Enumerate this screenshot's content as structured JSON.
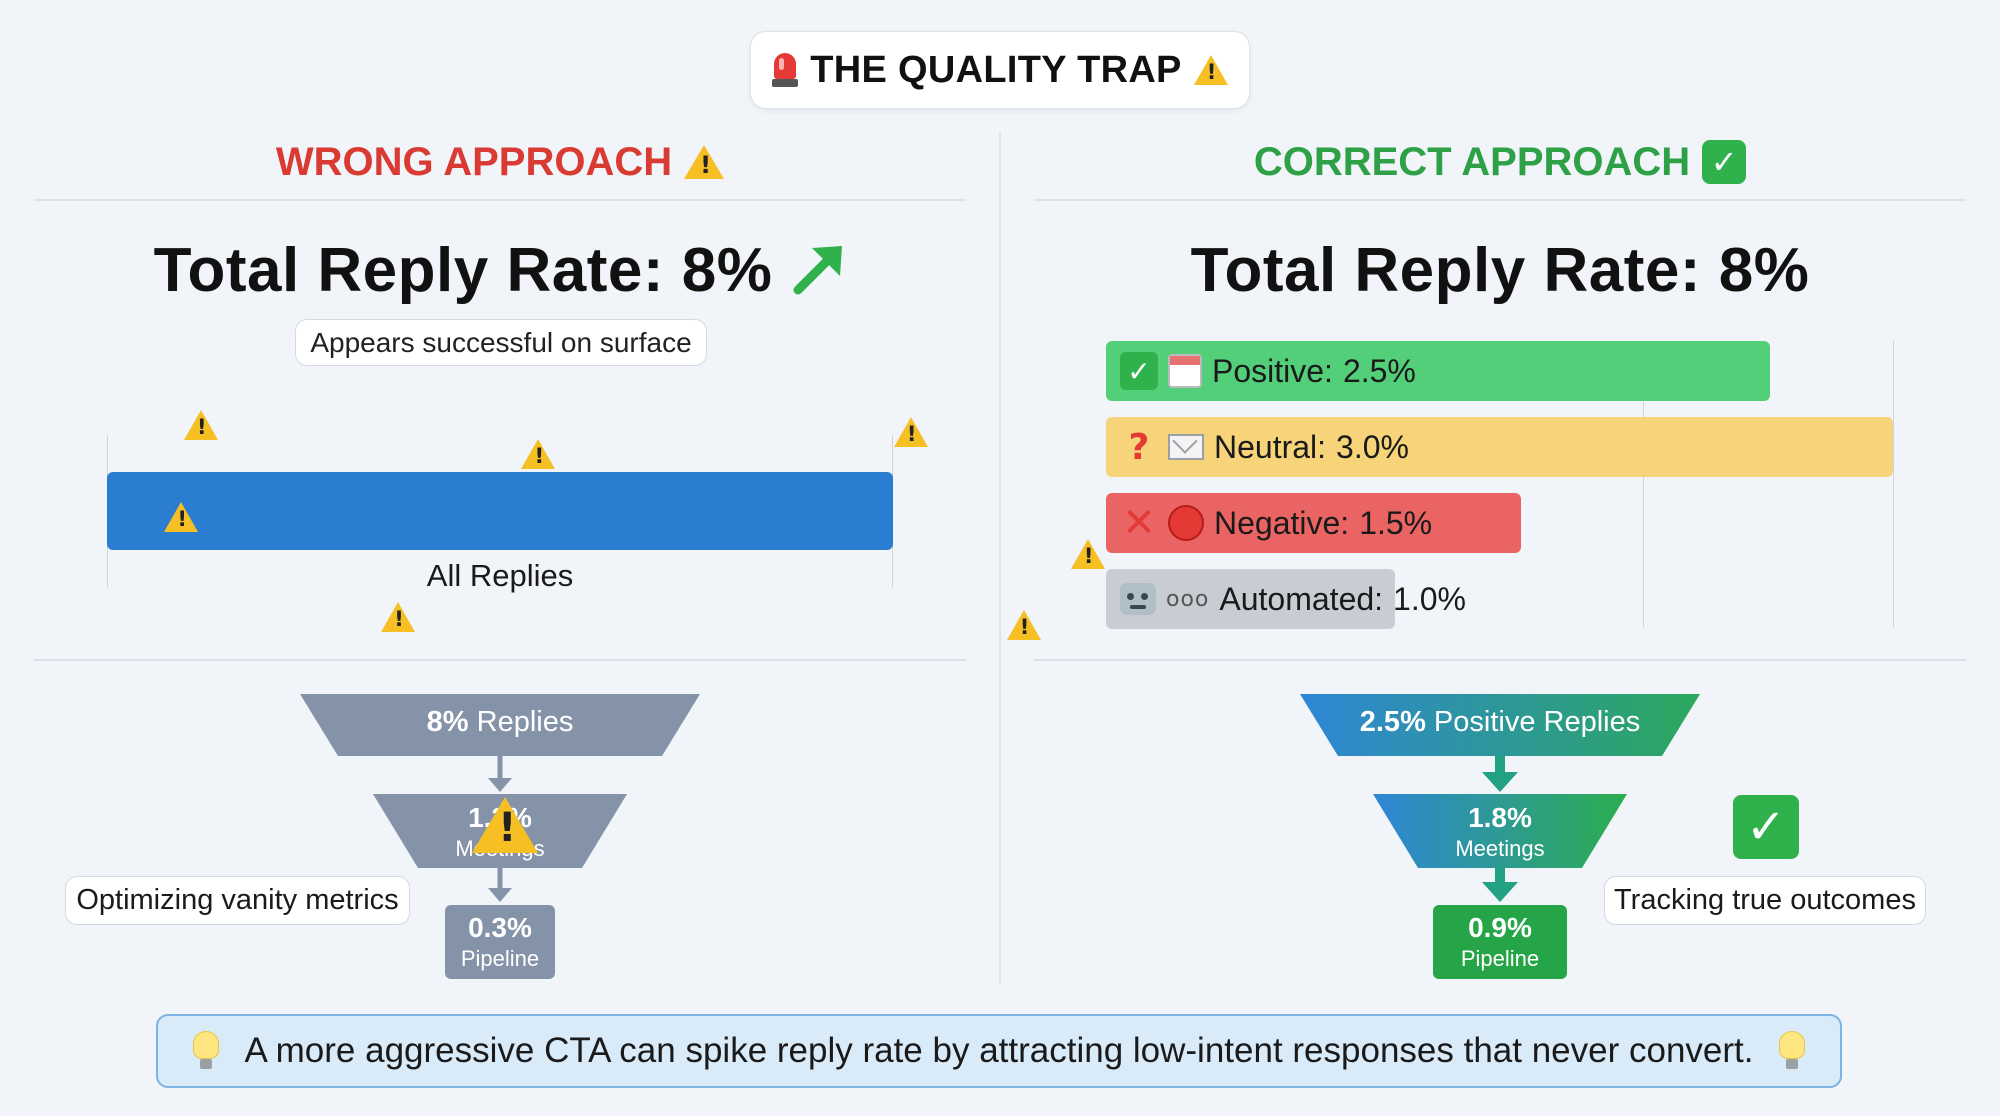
{
  "title": "THE QUALITY TRAP",
  "left": {
    "heading": "WRONG APPROACH",
    "heading_color": "#d93a32",
    "total_rate": "Total Reply Rate: 8%",
    "surface_note": "Appears successful on surface",
    "bar_label": "All Replies",
    "funnel": {
      "stage1": {
        "value": "8%",
        "label": "Replies"
      },
      "stage2": {
        "value": "1.2%",
        "label": "Meetings"
      },
      "stage3": {
        "value": "0.3%",
        "label": "Pipeline"
      }
    },
    "note": "Optimizing vanity metrics",
    "funnel_color": "#8593a8"
  },
  "right": {
    "heading": "CORRECT APPROACH",
    "heading_color": "#2ea046",
    "total_rate": "Total Reply Rate: 8%",
    "breakdown": [
      {
        "label": "Positive:",
        "value": "2.5%",
        "color": "#52cf78"
      },
      {
        "label": "Neutral:",
        "value": "3.0%",
        "color": "#f7d47a"
      },
      {
        "label": "Negative:",
        "value": "1.5%",
        "color": "#ea6464"
      },
      {
        "label": "Automated:",
        "value": "1.0%",
        "color": "#c9cdd3"
      }
    ],
    "funnel": {
      "stage1": {
        "value": "2.5%",
        "label": "Positive Replies"
      },
      "stage2": {
        "value": "1.8%",
        "label": "Meetings"
      },
      "stage3": {
        "value": "0.9%",
        "label": "Pipeline"
      }
    },
    "note": "Tracking true outcomes"
  },
  "footer": "A more aggressive CTA can spike reply rate by attracting low-intent responses that never convert."
}
